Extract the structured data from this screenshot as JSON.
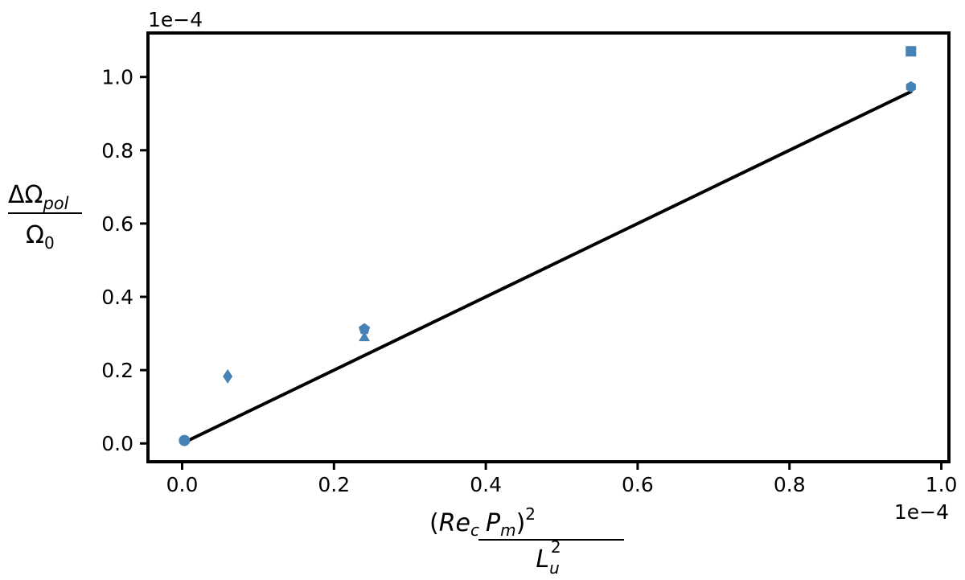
{
  "chart_data": {
    "type": "scatter",
    "title": "",
    "x_multiplier": "1e−4",
    "y_multiplier": "1e−4",
    "xlim": [
      -0.045,
      1.01
    ],
    "ylim": [
      -0.05,
      1.12
    ],
    "xticks": [
      0.0,
      0.2,
      0.4,
      0.6,
      0.8,
      1.0
    ],
    "xtick_labels": [
      "0.0",
      "0.2",
      "0.4",
      "0.6",
      "0.8",
      "1.0"
    ],
    "yticks": [
      0.0,
      0.2,
      0.4,
      0.6,
      0.8,
      1.0
    ],
    "ytick_labels": [
      "0.0",
      "0.2",
      "0.4",
      "0.6",
      "0.8",
      "1.0"
    ],
    "grid": false,
    "marker_color": "#4682b4",
    "line_color": "#000000",
    "points": [
      {
        "x": 0.003,
        "y": 0.008,
        "marker": "circle"
      },
      {
        "x": 0.06,
        "y": 0.183,
        "marker": "diamond"
      },
      {
        "x": 0.24,
        "y": 0.312,
        "marker": "pentagon"
      },
      {
        "x": 0.24,
        "y": 0.29,
        "marker": "triangle"
      },
      {
        "x": 0.96,
        "y": 1.07,
        "marker": "square"
      },
      {
        "x": 0.96,
        "y": 0.973,
        "marker": "hexagon"
      }
    ],
    "fit_line": {
      "x": [
        0.01,
        0.96
      ],
      "y": [
        0.01,
        0.96
      ]
    }
  },
  "xlabel": {
    "num_open": "(",
    "num_re": "Re",
    "num_c": "c",
    "num_p": "P",
    "num_m": "m",
    "num_close": ")",
    "num_exp": "2",
    "den_l": "L",
    "den_sub": "u",
    "den_sup": "2"
  },
  "ylabel": {
    "num_delta_omega": "ΔΩ",
    "num_sub": "pol",
    "den_omega": "Ω",
    "den_sub": "0"
  }
}
